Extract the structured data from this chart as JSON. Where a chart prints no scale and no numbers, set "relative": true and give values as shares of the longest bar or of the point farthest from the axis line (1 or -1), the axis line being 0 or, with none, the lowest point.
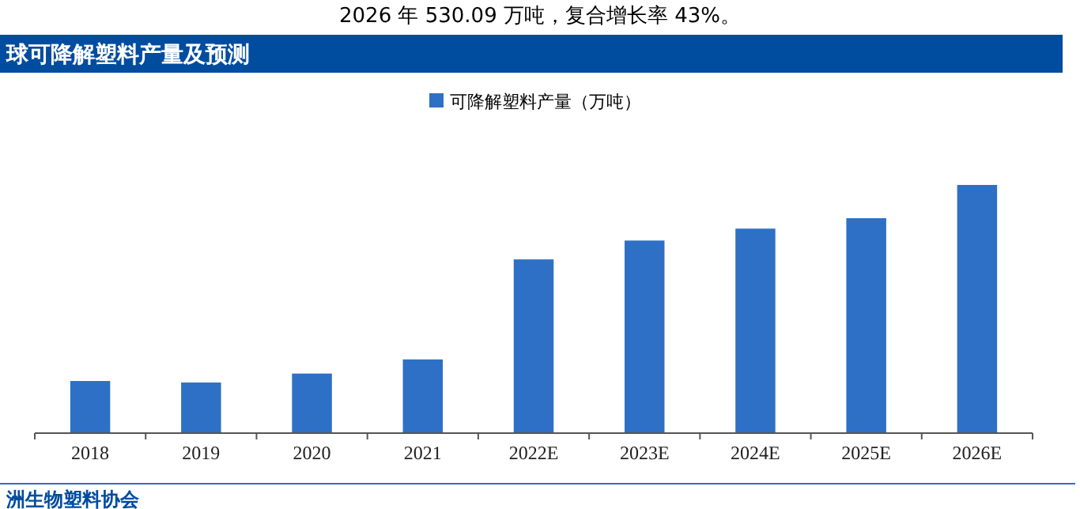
{
  "chart_data": {
    "type": "bar",
    "title": "球可降解塑料产量及预测",
    "relative": true,
    "legend": "top",
    "categories": [
      "2018",
      "2019",
      "2020",
      "2021",
      "2022E",
      "2023E",
      "2024E",
      "2025E",
      "2026E"
    ],
    "series": [
      {
        "name": "可降解塑料产量（万吨）",
        "color": "#2e70c5",
        "values": [
          0.21,
          0.204,
          0.24,
          0.297,
          0.7,
          0.776,
          0.824,
          0.866,
          1
        ]
      }
    ],
    "annotations": [
      "2026 年 530.09 万吨，复合增长率 43%。",
      "洲生物塑料协会"
    ]
  }
}
